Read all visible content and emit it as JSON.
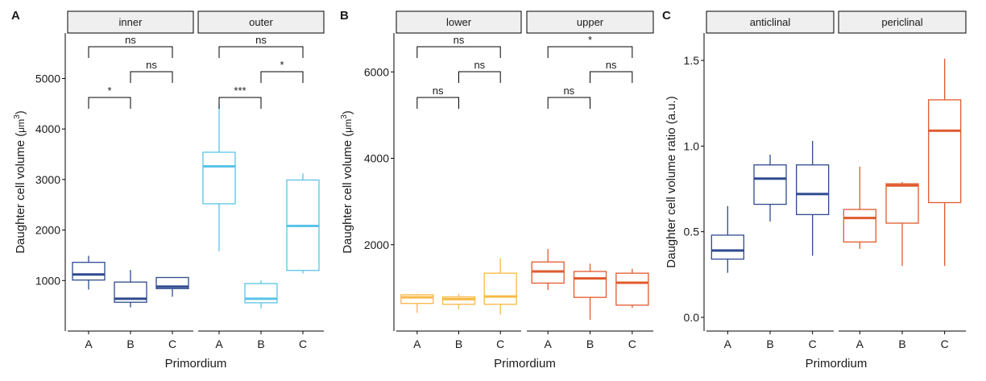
{
  "panel_labels": [
    "A",
    "B",
    "C"
  ],
  "axis_common": {
    "xlabel": "Primordium"
  },
  "chart_data": [
    {
      "type": "box",
      "label": "A",
      "ylabel": "Daughter cell volume (",
      "ylabel_unit_main": "m",
      "ylabel_unit_sup": "3",
      "ylabel_prefix_glyph": "μ",
      "ylim": [
        0,
        5900
      ],
      "yticks": [
        1000,
        2000,
        3000,
        4000,
        5000
      ],
      "ytick_labels": [
        "1000",
        "2000",
        "3000",
        "4000",
        "5000"
      ],
      "categories": [
        "A",
        "B",
        "C"
      ],
      "facets": [
        {
          "name": "inner",
          "color": "#2e4a8f",
          "boxes": [
            {
              "cat": "A",
              "min": 820,
              "q1": 1010,
              "median": 1120,
              "q3": 1360,
              "max": 1490
            },
            {
              "cat": "B",
              "min": 470,
              "q1": 570,
              "median": 640,
              "q3": 970,
              "max": 1210
            },
            {
              "cat": "C",
              "min": 680,
              "q1": 840,
              "median": 880,
              "q3": 1060,
              "max": 1060
            }
          ],
          "comparisons": [
            {
              "from": "A",
              "to": "C",
              "label": "ns",
              "level": 3
            },
            {
              "from": "B",
              "to": "C",
              "label": "ns",
              "level": 2
            },
            {
              "from": "A",
              "to": "B",
              "label": "*",
              "level": 1
            }
          ]
        },
        {
          "name": "outer",
          "color": "#5bc3e6",
          "boxes": [
            {
              "cat": "A",
              "min": 1580,
              "q1": 2520,
              "median": 3260,
              "q3": 3540,
              "max": 4480
            },
            {
              "cat": "B",
              "min": 450,
              "q1": 560,
              "median": 640,
              "q3": 940,
              "max": 1000
            },
            {
              "cat": "C",
              "min": 1140,
              "q1": 1200,
              "median": 2080,
              "q3": 2990,
              "max": 3120
            }
          ],
          "comparisons": [
            {
              "from": "A",
              "to": "C",
              "label": "ns",
              "level": 3
            },
            {
              "from": "B",
              "to": "C",
              "label": "*",
              "level": 2
            },
            {
              "from": "A",
              "to": "B",
              "label": "***",
              "level": 1
            }
          ]
        }
      ]
    },
    {
      "type": "box",
      "label": "B",
      "ylabel": "Daughter cell volume (",
      "ylabel_unit_main": "m",
      "ylabel_unit_sup": "3",
      "ylabel_prefix_glyph": "μ",
      "ylim": [
        0,
        6900
      ],
      "yticks": [
        2000,
        4000,
        6000
      ],
      "ytick_labels": [
        "2000",
        "4000",
        "6000"
      ],
      "categories": [
        "A",
        "B",
        "C"
      ],
      "facets": [
        {
          "name": "lower",
          "color": "#f9b847",
          "boxes": [
            {
              "cat": "A",
              "min": 420,
              "q1": 640,
              "median": 780,
              "q3": 840,
              "max": 860
            },
            {
              "cat": "B",
              "min": 500,
              "q1": 620,
              "median": 740,
              "q3": 790,
              "max": 860
            },
            {
              "cat": "C",
              "min": 380,
              "q1": 620,
              "median": 800,
              "q3": 1340,
              "max": 1690
            }
          ],
          "comparisons": [
            {
              "from": "A",
              "to": "C",
              "label": "ns",
              "level": 3
            },
            {
              "from": "B",
              "to": "C",
              "label": "ns",
              "level": 2
            },
            {
              "from": "A",
              "to": "B",
              "label": "ns",
              "level": 1
            }
          ]
        },
        {
          "name": "upper",
          "color": "#e15a2e",
          "boxes": [
            {
              "cat": "A",
              "min": 950,
              "q1": 1110,
              "median": 1380,
              "q3": 1600,
              "max": 1900
            },
            {
              "cat": "B",
              "min": 260,
              "q1": 780,
              "median": 1220,
              "q3": 1380,
              "max": 1560
            },
            {
              "cat": "C",
              "min": 540,
              "q1": 600,
              "median": 1120,
              "q3": 1340,
              "max": 1440
            }
          ],
          "comparisons": [
            {
              "from": "A",
              "to": "C",
              "label": "*",
              "level": 3
            },
            {
              "from": "B",
              "to": "C",
              "label": "ns",
              "level": 2
            },
            {
              "from": "A",
              "to": "B",
              "label": "ns",
              "level": 1
            }
          ]
        }
      ]
    },
    {
      "type": "box",
      "label": "C",
      "ylabel": "Daughter cell volume ratio (a.u.)",
      "ylim": [
        -0.08,
        1.66
      ],
      "yticks": [
        0.0,
        0.5,
        1.0,
        1.5
      ],
      "ytick_labels": [
        "0.0",
        "0.5",
        "1.0",
        "1.5"
      ],
      "categories": [
        "A",
        "B",
        "C"
      ],
      "facets": [
        {
          "name": "anticlinal",
          "color": "#2e4a8f",
          "boxes": [
            {
              "cat": "A",
              "min": 0.26,
              "q1": 0.34,
              "median": 0.39,
              "q3": 0.48,
              "max": 0.65
            },
            {
              "cat": "B",
              "min": 0.56,
              "q1": 0.66,
              "median": 0.81,
              "q3": 0.89,
              "max": 0.95
            },
            {
              "cat": "C",
              "min": 0.36,
              "q1": 0.6,
              "median": 0.72,
              "q3": 0.89,
              "max": 1.03
            }
          ],
          "comparisons": []
        },
        {
          "name": "periclinal",
          "color": "#e15a2e",
          "boxes": [
            {
              "cat": "A",
              "min": 0.4,
              "q1": 0.44,
              "median": 0.58,
              "q3": 0.63,
              "max": 0.88
            },
            {
              "cat": "B",
              "min": 0.3,
              "q1": 0.55,
              "median": 0.77,
              "q3": 0.78,
              "max": 0.79
            },
            {
              "cat": "C",
              "min": 0.3,
              "q1": 0.67,
              "median": 1.09,
              "q3": 1.27,
              "max": 1.51
            }
          ],
          "comparisons": []
        }
      ]
    }
  ]
}
